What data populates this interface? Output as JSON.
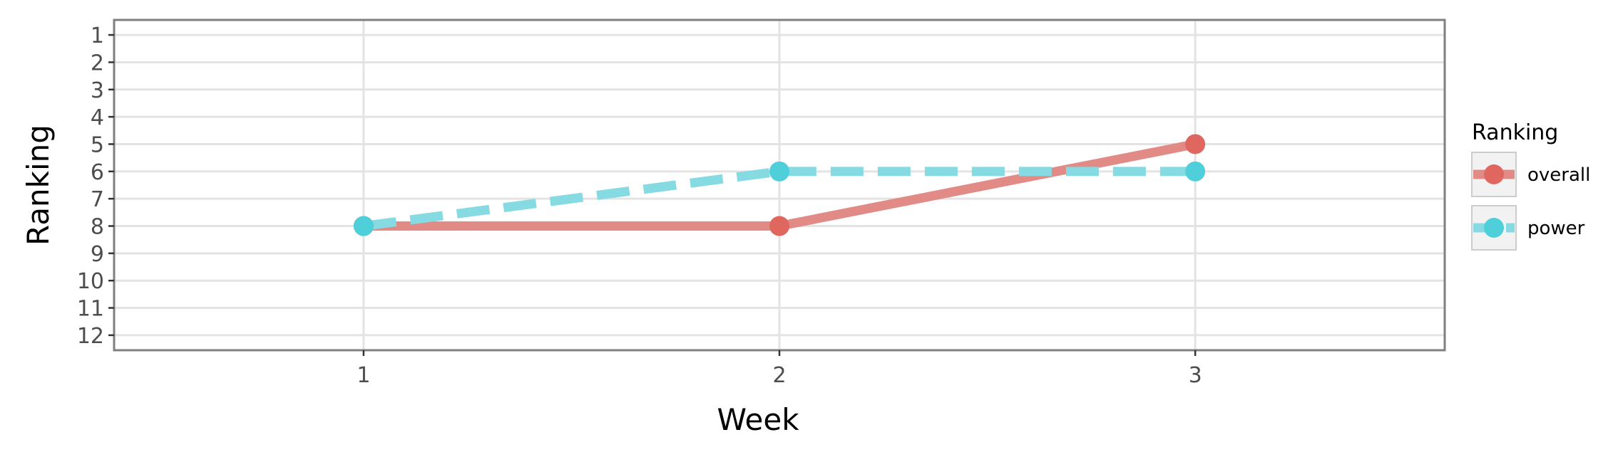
{
  "chart_data": {
    "type": "line",
    "title": "",
    "xlabel": "Week",
    "ylabel": "Ranking",
    "x": [
      1,
      2,
      3
    ],
    "x_tick_labels": [
      "1",
      "2",
      "3"
    ],
    "xlim": [
      0.4,
      3.6
    ],
    "y_tick_labels": [
      "1",
      "2",
      "3",
      "4",
      "5",
      "6",
      "7",
      "8",
      "9",
      "10",
      "11",
      "12"
    ],
    "ylim": [
      0.45,
      12.55
    ],
    "y_reversed": true,
    "grid": true,
    "legend": {
      "title": "Ranking",
      "placement": "right"
    },
    "series": [
      {
        "name": "overall",
        "values": [
          8,
          8,
          5
        ],
        "color": "#e06660",
        "line_color": "#e28a86",
        "line_style": "solid"
      },
      {
        "name": "power",
        "values": [
          8,
          6,
          6
        ],
        "color": "#4ecfd9",
        "line_color": "#86dbe3",
        "line_style": "dashed"
      }
    ]
  }
}
